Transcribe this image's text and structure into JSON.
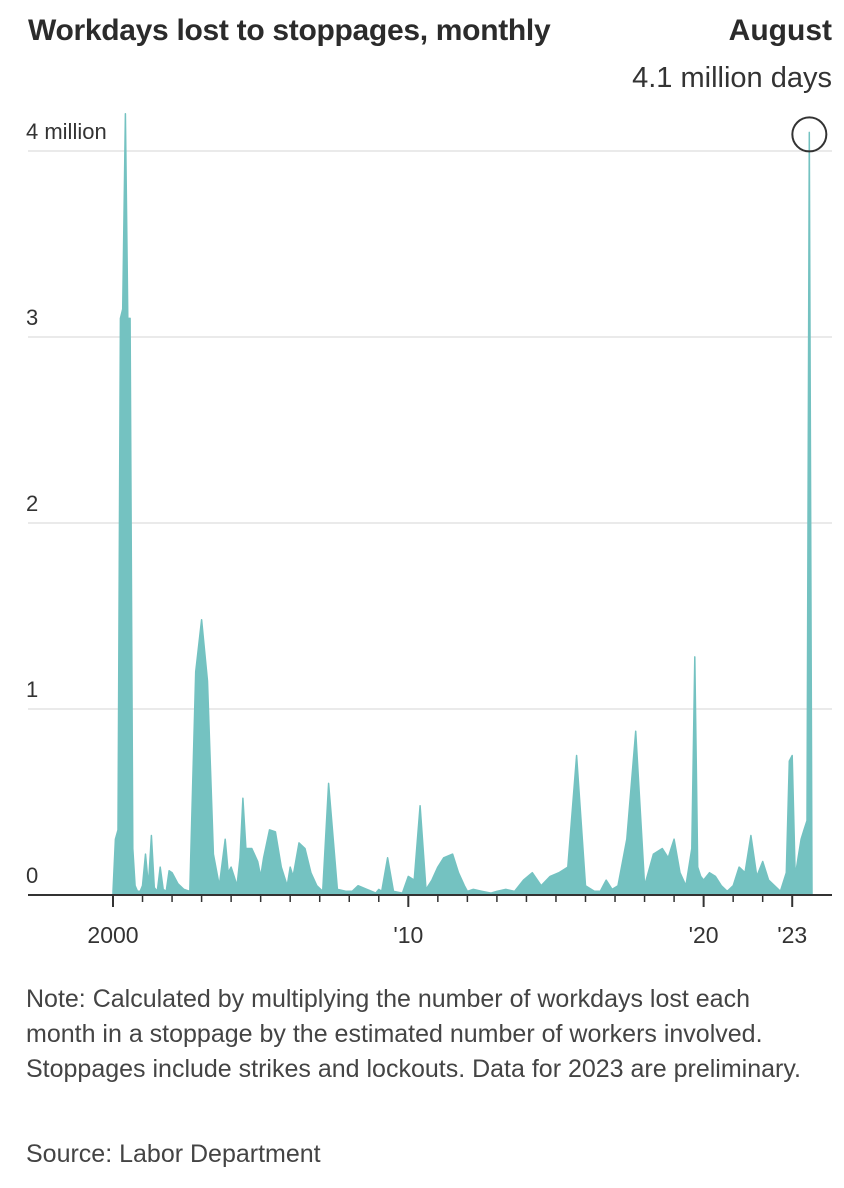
{
  "chart_data": {
    "type": "area",
    "title": "Workdays lost to stoppages, monthly",
    "xlabel": "",
    "ylabel": "",
    "y_unit": "million workdays",
    "ylim": [
      0,
      4.2
    ],
    "yticks": [
      0,
      1,
      2,
      3,
      4
    ],
    "ytick_labels": [
      "0",
      "1",
      "2",
      "3",
      "4 million"
    ],
    "xlim": [
      2000,
      2023.67
    ],
    "xticks": [
      2000,
      2010,
      2020,
      2023
    ],
    "xtick_labels": [
      "2000",
      "'10",
      "'20",
      "'23"
    ],
    "minor_xticks": [
      2001,
      2002,
      2003,
      2004,
      2005,
      2006,
      2007,
      2008,
      2009,
      2011,
      2012,
      2013,
      2014,
      2015,
      2016,
      2017,
      2018,
      2019,
      2021,
      2022
    ],
    "grid": true,
    "color": "#74c2c1",
    "annotation": {
      "label_month": "August",
      "label_value": "4.1 million days",
      "x": 2023.58,
      "y": 4.1
    },
    "series": [
      {
        "x": [
          2000.0,
          2000.08,
          2000.17,
          2000.25,
          2000.33,
          2000.42,
          2000.5,
          2000.58,
          2000.67,
          2000.75,
          2000.83,
          2000.92,
          2001.0,
          2001.1,
          2001.2,
          2001.3,
          2001.4,
          2001.5,
          2001.6,
          2001.7,
          2001.8,
          2001.9,
          2002.0,
          2002.2,
          2002.4,
          2002.6,
          2002.8,
          2003.0,
          2003.2,
          2003.4,
          2003.6,
          2003.8,
          2003.9,
          2004.0,
          2004.1,
          2004.2,
          2004.3,
          2004.4,
          2004.5,
          2004.7,
          2004.9,
          2005.0,
          2005.1,
          2005.3,
          2005.5,
          2005.7,
          2005.9,
          2006.0,
          2006.1,
          2006.3,
          2006.5,
          2006.7,
          2006.9,
          2007.1,
          2007.3,
          2007.6,
          2007.9,
          2008.1,
          2008.3,
          2008.6,
          2008.9,
          2009.0,
          2009.1,
          2009.3,
          2009.5,
          2009.8,
          2010.0,
          2010.2,
          2010.4,
          2010.6,
          2010.8,
          2011.0,
          2011.2,
          2011.5,
          2011.7,
          2011.9,
          2012.0,
          2012.2,
          2012.5,
          2012.8,
          2013.0,
          2013.3,
          2013.6,
          2013.9,
          2014.2,
          2014.5,
          2014.8,
          2015.1,
          2015.4,
          2015.7,
          2016.0,
          2016.3,
          2016.5,
          2016.6,
          2016.7,
          2016.9,
          2017.1,
          2017.4,
          2017.7,
          2018.0,
          2018.3,
          2018.6,
          2018.8,
          2018.9,
          2019.0,
          2019.2,
          2019.4,
          2019.6,
          2019.7,
          2019.8,
          2019.9,
          2020.0,
          2020.2,
          2020.4,
          2020.6,
          2020.8,
          2021.0,
          2021.2,
          2021.4,
          2021.6,
          2021.8,
          2022.0,
          2022.2,
          2022.4,
          2022.6,
          2022.8,
          2022.9,
          2023.0,
          2023.1,
          2023.2,
          2023.3,
          2023.4,
          2023.5,
          2023.58,
          2023.67
        ],
        "values": [
          0.02,
          0.3,
          0.35,
          3.1,
          3.15,
          4.2,
          3.1,
          3.1,
          0.25,
          0.05,
          0.02,
          0.02,
          0.05,
          0.22,
          0.05,
          0.32,
          0.04,
          0.02,
          0.15,
          0.03,
          0.02,
          0.13,
          0.12,
          0.06,
          0.03,
          0.02,
          1.2,
          1.48,
          1.15,
          0.22,
          0.05,
          0.3,
          0.12,
          0.15,
          0.1,
          0.05,
          0.2,
          0.52,
          0.25,
          0.25,
          0.18,
          0.1,
          0.2,
          0.35,
          0.34,
          0.15,
          0.05,
          0.15,
          0.1,
          0.28,
          0.25,
          0.12,
          0.05,
          0.02,
          0.6,
          0.03,
          0.02,
          0.02,
          0.05,
          0.03,
          0.01,
          0.03,
          0.02,
          0.2,
          0.02,
          0.01,
          0.1,
          0.08,
          0.48,
          0.03,
          0.08,
          0.15,
          0.2,
          0.22,
          0.12,
          0.05,
          0.02,
          0.03,
          0.02,
          0.01,
          0.02,
          0.03,
          0.02,
          0.08,
          0.12,
          0.05,
          0.1,
          0.12,
          0.15,
          0.75,
          0.05,
          0.02,
          0.02,
          0.05,
          0.08,
          0.03,
          0.05,
          0.3,
          0.88,
          0.05,
          0.22,
          0.25,
          0.2,
          0.25,
          0.3,
          0.12,
          0.05,
          0.25,
          1.28,
          0.15,
          0.1,
          0.08,
          0.12,
          0.1,
          0.05,
          0.02,
          0.05,
          0.15,
          0.12,
          0.32,
          0.1,
          0.18,
          0.08,
          0.05,
          0.02,
          0.12,
          0.72,
          0.75,
          0.1,
          0.2,
          0.3,
          0.35,
          0.4,
          4.1,
          0.02
        ]
      }
    ]
  },
  "note": "Note: Calculated by multiplying the number of workdays lost each month in a stoppage by the estimated number of workers involved. Stoppages include strikes and lockouts. Data for 2023 are preliminary.",
  "source": "Source: Labor Department"
}
